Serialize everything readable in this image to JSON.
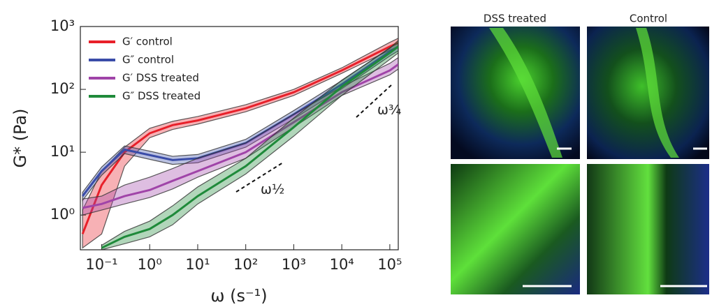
{
  "chart_data": {
    "type": "line",
    "x_label": "ω (s⁻¹)",
    "y_label": "G* (Pa)",
    "log_x": true,
    "log_y": true,
    "legend": "upper left",
    "xlim": [
      0.036,
      150000
    ],
    "ylim": [
      0.28,
      1000
    ],
    "xticks": [
      {
        "value": 0.1,
        "label": "10⁻¹"
      },
      {
        "value": 1,
        "label": "10⁰"
      },
      {
        "value": 10,
        "label": "10¹"
      },
      {
        "value": 100,
        "label": "10²"
      },
      {
        "value": 1000,
        "label": "10³"
      },
      {
        "value": 10000,
        "label": "10⁴"
      },
      {
        "value": 100000,
        "label": "10⁵"
      }
    ],
    "yticks": [
      {
        "value": 1,
        "label": "10⁰"
      },
      {
        "value": 10,
        "label": "10¹"
      },
      {
        "value": 100,
        "label": "10²"
      },
      {
        "value": 1000,
        "label": "10³"
      }
    ],
    "x": [
      0.04,
      0.1,
      0.3,
      1,
      3,
      10,
      100,
      1000,
      10000,
      100000,
      150000
    ],
    "series": [
      {
        "name": "G′ control",
        "color": "#e8202a",
        "values": [
          0.5,
          3,
          10,
          20,
          27,
          32,
          50,
          90,
          200,
          480,
          550
        ],
        "lower": [
          0.3,
          0.5,
          6,
          17,
          23,
          28,
          44,
          80,
          180,
          420,
          480
        ],
        "upper": [
          1.2,
          5,
          12,
          24,
          31,
          37,
          57,
          100,
          220,
          560,
          650
        ]
      },
      {
        "name": "G″ control",
        "color": "#3a4ca8",
        "values": [
          2,
          5,
          11,
          9,
          7.5,
          8,
          14,
          40,
          120,
          400,
          480
        ],
        "lower": [
          1.7,
          4.3,
          9.5,
          7.7,
          6.4,
          6.8,
          12,
          34,
          102,
          340,
          410
        ],
        "upper": [
          2.3,
          5.8,
          12.6,
          10.4,
          8.6,
          9.2,
          16,
          46,
          138,
          460,
          550
        ]
      },
      {
        "name": "G′ DSS treated",
        "color": "#a044a8",
        "values": [
          1.3,
          1.5,
          2,
          2.5,
          3.5,
          5,
          10,
          30,
          90,
          200,
          250
        ],
        "lower": [
          1.0,
          1.2,
          1.5,
          1.9,
          2.6,
          4,
          8,
          25,
          80,
          170,
          210
        ],
        "upper": [
          1.8,
          2,
          3,
          4,
          5.5,
          8,
          14,
          40,
          110,
          260,
          320
        ]
      },
      {
        "name": "G″ DSS treated",
        "color": "#1f8a3a",
        "values": [
          null,
          0.3,
          0.45,
          0.6,
          1,
          2,
          6,
          25,
          110,
          380,
          480
        ],
        "lower": [
          null,
          0.28,
          0.35,
          0.45,
          0.7,
          1.5,
          4.5,
          18,
          80,
          300,
          380
        ],
        "upper": [
          null,
          0.33,
          0.55,
          0.8,
          1.4,
          2.8,
          8,
          35,
          140,
          450,
          600
        ]
      }
    ],
    "annotations": [
      "ω½",
      "ω¾"
    ]
  },
  "image_panel": {
    "column_titles": [
      "DSS treated",
      "Control"
    ]
  }
}
